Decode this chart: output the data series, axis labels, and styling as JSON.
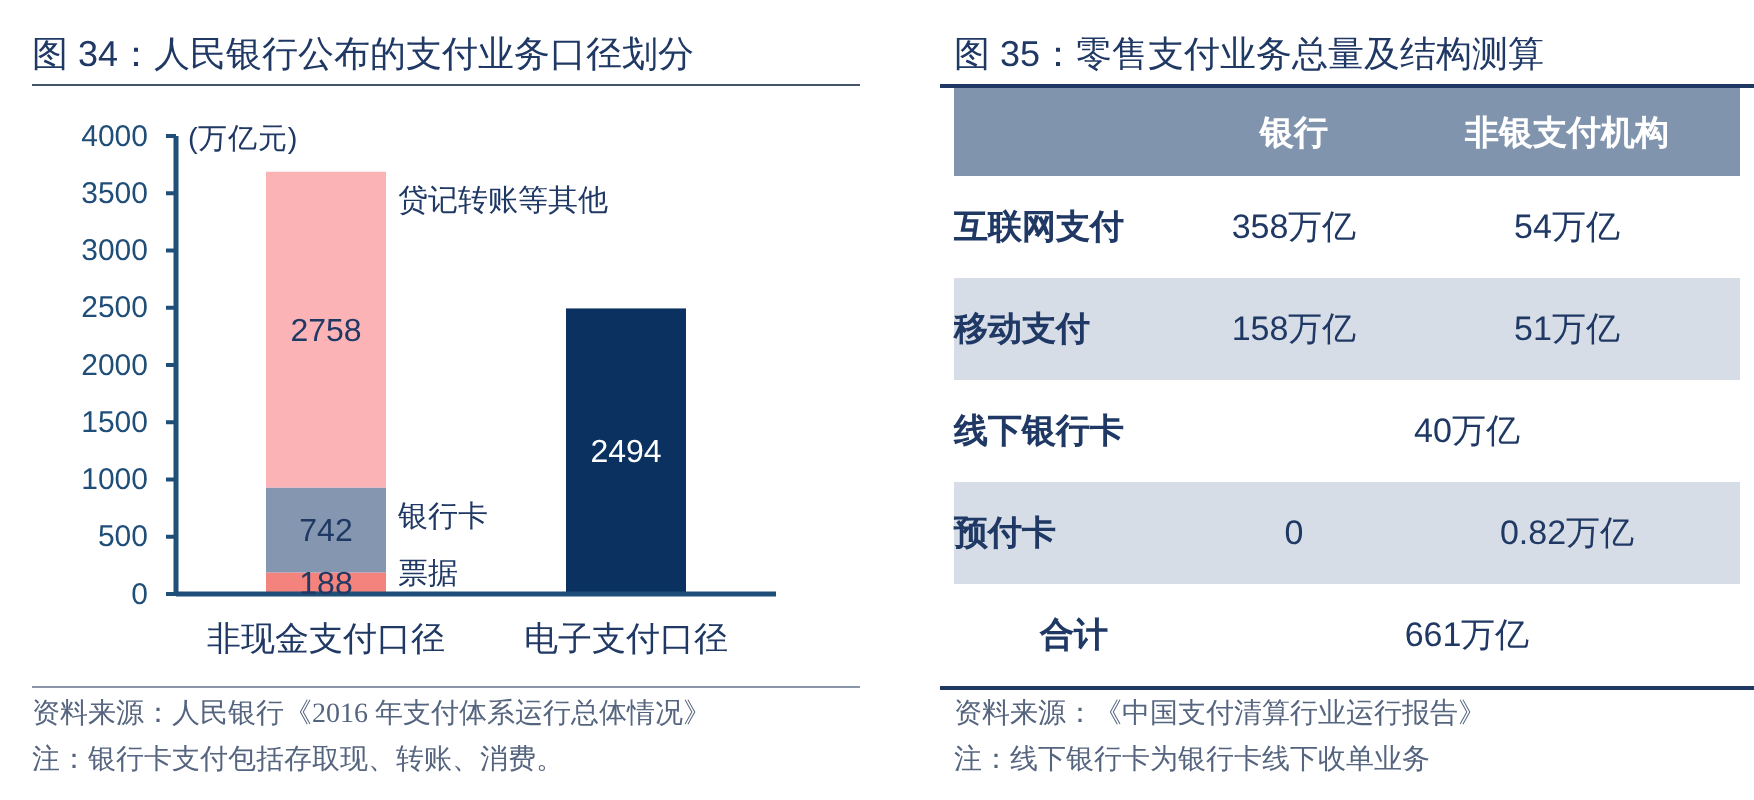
{
  "chart_data": [
    {
      "type": "bar",
      "title": "图 34：人民银行公布的支付业务口径划分",
      "ylabel": "(万亿元)",
      "categories": [
        "非现金支付口径",
        "电子支付口径"
      ],
      "stacked": true,
      "series": [
        {
          "name": "票据",
          "color": "#f4837d",
          "values": [
            188,
            null
          ]
        },
        {
          "name": "银行卡",
          "color": "#8496b0",
          "values": [
            742,
            null
          ]
        },
        {
          "name": "贷记转账等其他",
          "color": "#fbb3b6",
          "values": [
            2758,
            null
          ]
        },
        {
          "color": "#0b3160",
          "values": [
            null,
            2494
          ]
        }
      ],
      "ylim": [
        0,
        4000
      ],
      "yticks": [
        0,
        500,
        1000,
        1500,
        2000,
        2500,
        3000,
        3500,
        4000
      ],
      "data_labels": true,
      "annotations": [
        "资料来源：人民银行《2016 年支付体系运行总体情况》",
        "注：银行卡支付包括存取现、转账、消费。"
      ]
    },
    {
      "type": "other",
      "title": "图 35：零售支付业务总量及结构测算",
      "categories": [
        "银行",
        "非银支付机构"
      ],
      "y_categories": [
        "互联网支付",
        "移动支付",
        "线下银行卡",
        "预付卡",
        "合计"
      ],
      "cell_labels": [
        [
          "358万亿",
          "54万亿"
        ],
        [
          "158万亿",
          "51万亿"
        ],
        [
          "40万亿",
          null
        ],
        [
          "0",
          "0.82万亿"
        ],
        [
          "661万亿",
          null
        ]
      ],
      "annotations": [
        "资料来源：《中国支付清算行业运行报告》",
        "注：线下银行卡为银行卡线下收单业务"
      ]
    }
  ]
}
